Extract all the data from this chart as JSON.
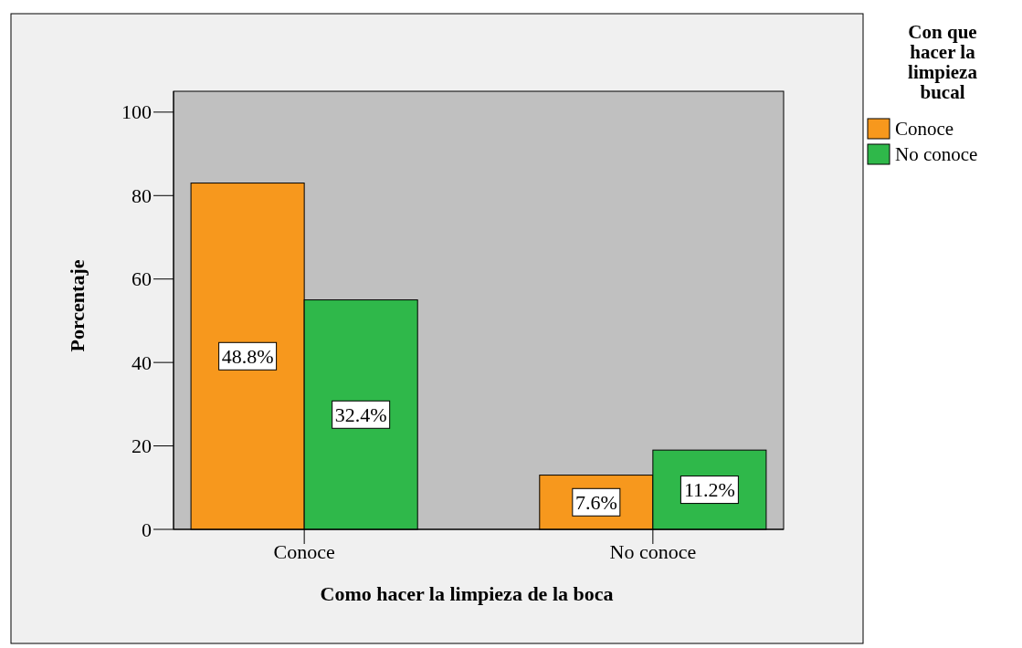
{
  "chart_data": {
    "type": "bar",
    "xlabel": "Como hacer la limpieza de la boca",
    "ylabel": "Porcentaje",
    "legend_title": "Con que hacer la limpieza bucal",
    "categories": [
      "Conoce",
      "No conoce"
    ],
    "series": [
      {
        "name": "Conoce",
        "color": "#f7981d",
        "values": [
          83,
          13
        ]
      },
      {
        "name": "No conoce",
        "color": "#2fb84a",
        "values": [
          55,
          19
        ]
      }
    ],
    "annotations": [
      {
        "text": "48.8%",
        "x": "Conoce",
        "y": 41.5
      },
      {
        "text": "32.4%",
        "x": "Conoce",
        "y": 27.5
      },
      {
        "text": "7.6%",
        "x": "No conoce",
        "y": 6.5
      },
      {
        "text": "11.2%",
        "x": "No conoce",
        "y": 9.5
      }
    ],
    "ylim": [
      0,
      105
    ],
    "yticks": [
      0,
      20,
      40,
      60,
      80,
      100
    ],
    "grid": false,
    "legend": "right"
  }
}
